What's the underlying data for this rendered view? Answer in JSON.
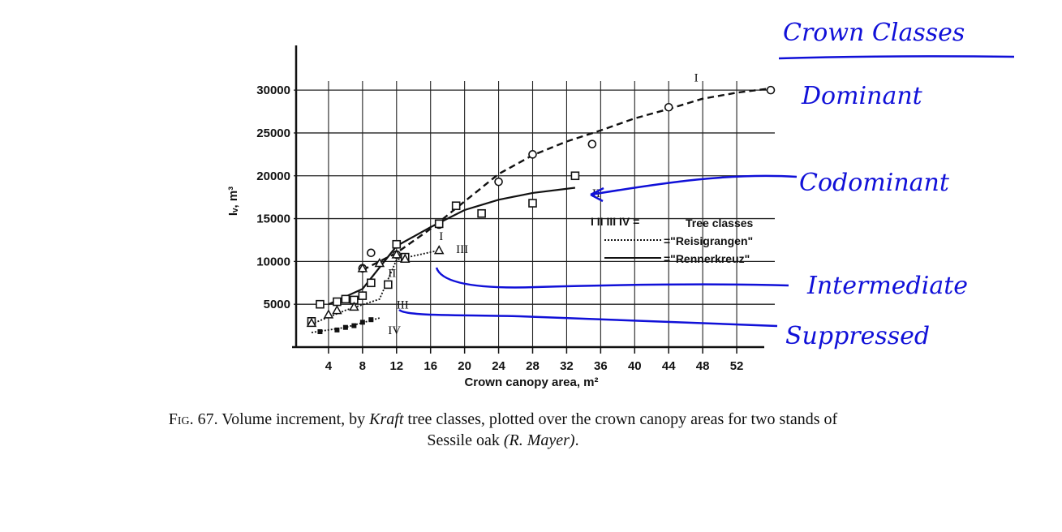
{
  "chart_data": {
    "type": "scatter",
    "title": "",
    "xlabel": "Crown canopy area, m²",
    "ylabel": "Iᵥ, m³",
    "x_ticks": [
      4,
      8,
      12,
      16,
      20,
      24,
      28,
      32,
      36,
      40,
      44,
      48,
      52
    ],
    "y_ticks": [
      5000,
      10000,
      15000,
      20000,
      25000,
      30000
    ],
    "y_tick_labels": [
      "5000",
      "10000",
      "15000",
      "20000",
      "25000",
      "30000"
    ],
    "xlim": [
      0,
      56
    ],
    "ylim": [
      0,
      32000
    ],
    "grid": true,
    "series": [
      {
        "name": "I",
        "marker": "circle",
        "points": [
          [
            8,
            9200
          ],
          [
            9,
            11000
          ],
          [
            12,
            10800
          ],
          [
            17,
            14300
          ],
          [
            24,
            19300
          ],
          [
            28,
            22500
          ],
          [
            35,
            23700
          ],
          [
            44,
            28000
          ],
          [
            56,
            30000
          ]
        ],
        "curve": [
          [
            8,
            9000
          ],
          [
            12,
            11000
          ],
          [
            16,
            13800
          ],
          [
            20,
            17000
          ],
          [
            24,
            20200
          ],
          [
            28,
            22400
          ],
          [
            32,
            24000
          ],
          [
            36,
            25300
          ],
          [
            40,
            26700
          ],
          [
            44,
            27800
          ],
          [
            48,
            29000
          ],
          [
            52,
            29700
          ],
          [
            56,
            30200
          ]
        ]
      },
      {
        "name": "II",
        "marker": "square",
        "points": [
          [
            2,
            3000
          ],
          [
            3,
            5000
          ],
          [
            5,
            5300
          ],
          [
            6,
            5600
          ],
          [
            7,
            5500
          ],
          [
            8,
            6000
          ],
          [
            9,
            7500
          ],
          [
            11,
            7300
          ],
          [
            12,
            12000
          ],
          [
            13,
            10500
          ],
          [
            17,
            14400
          ],
          [
            19,
            16500
          ],
          [
            22,
            15600
          ],
          [
            28,
            16800
          ],
          [
            33,
            20000
          ]
        ],
        "curve": [
          [
            4,
            5000
          ],
          [
            8,
            6800
          ],
          [
            12,
            11800
          ],
          [
            16,
            14000
          ],
          [
            20,
            16000
          ],
          [
            24,
            17200
          ],
          [
            28,
            18000
          ],
          [
            33,
            18600
          ]
        ]
      },
      {
        "name": "III",
        "marker": "triangle",
        "points": [
          [
            2,
            2800
          ],
          [
            4,
            3800
          ],
          [
            5,
            4300
          ],
          [
            7,
            4700
          ],
          [
            8,
            9200
          ],
          [
            10,
            9800
          ],
          [
            12,
            10800
          ],
          [
            13,
            10300
          ],
          [
            17,
            11300
          ]
        ],
        "curve": [
          [
            2,
            2700
          ],
          [
            6,
            4300
          ],
          [
            10,
            5600
          ],
          [
            12,
            10200
          ],
          [
            17,
            11300
          ]
        ]
      },
      {
        "name": "IV",
        "marker": "filled",
        "points": [
          [
            3,
            1800
          ],
          [
            5,
            2000
          ],
          [
            6,
            2300
          ],
          [
            7,
            2500
          ],
          [
            8,
            2900
          ],
          [
            9,
            3200
          ]
        ],
        "curve": [
          [
            2,
            1700
          ],
          [
            6,
            2300
          ],
          [
            10,
            3400
          ]
        ]
      }
    ],
    "legend": {
      "classes_label": "I  II  III  IV =",
      "classes_text": "Tree classes",
      "stand1": "=\"Reisigrangen\"",
      "stand2": "=\"Rennerkreuz\"",
      "placement": "right"
    }
  },
  "annotations": {
    "heading": "Crown Classes",
    "dominant": "Dominant",
    "codominant": "Codominant",
    "intermediate": "Intermediate",
    "suppressed": "Suppressed"
  },
  "caption": {
    "fig": "Fig.",
    "text1": " 67. Volume increment, by ",
    "kraft": "Kraft",
    "text2": " tree classes, plotted over the crown canopy areas for two stands of",
    "text3": "Sessile oak ",
    "author": "(R. Mayer)",
    "text4": "."
  }
}
